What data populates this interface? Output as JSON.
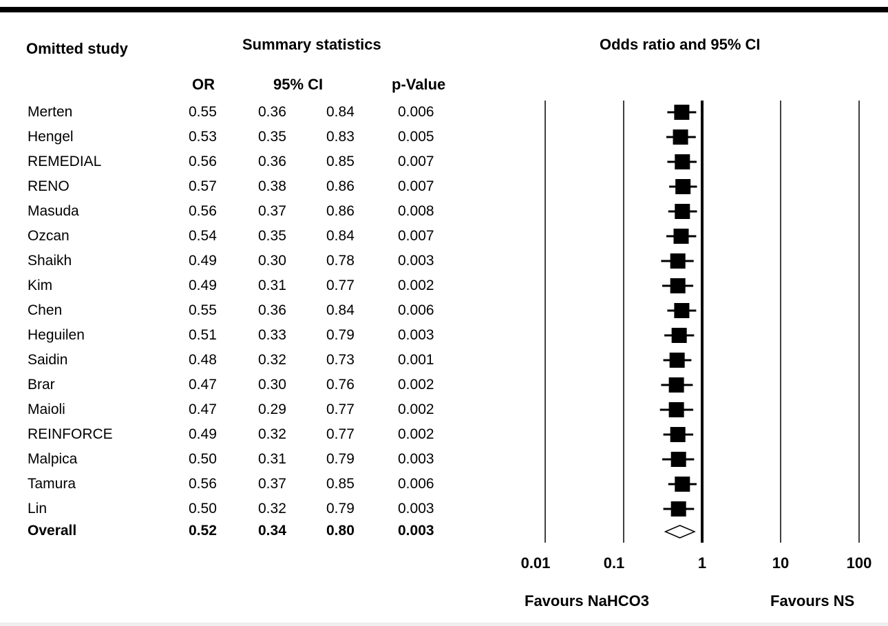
{
  "headers": {
    "omitted_study": "Omitted study",
    "summary_statistics": "Summary statistics",
    "odds_ratio_ci": "Odds ratio and 95% CI",
    "or": "OR",
    "ci_95": "95% CI",
    "p_value": "p-Value"
  },
  "rows": [
    {
      "study": "Merten",
      "or": "0.55",
      "lower": "0.36",
      "upper": "0.84",
      "p": "0.006"
    },
    {
      "study": "Hengel",
      "or": "0.53",
      "lower": "0.35",
      "upper": "0.83",
      "p": "0.005"
    },
    {
      "study": "REMEDIAL",
      "or": "0.56",
      "lower": "0.36",
      "upper": "0.85",
      "p": "0.007"
    },
    {
      "study": "RENO",
      "or": "0.57",
      "lower": "0.38",
      "upper": "0.86",
      "p": "0.007"
    },
    {
      "study": "Masuda",
      "or": "0.56",
      "lower": "0.37",
      "upper": "0.86",
      "p": "0.008"
    },
    {
      "study": "Ozcan",
      "or": "0.54",
      "lower": "0.35",
      "upper": "0.84",
      "p": "0.007"
    },
    {
      "study": "Shaikh",
      "or": "0.49",
      "lower": "0.30",
      "upper": "0.78",
      "p": "0.003"
    },
    {
      "study": "Kim",
      "or": "0.49",
      "lower": "0.31",
      "upper": "0.77",
      "p": "0.002"
    },
    {
      "study": "Chen",
      "or": "0.55",
      "lower": "0.36",
      "upper": "0.84",
      "p": "0.006"
    },
    {
      "study": "Heguilen",
      "or": "0.51",
      "lower": "0.33",
      "upper": "0.79",
      "p": "0.003"
    },
    {
      "study": "Saidin",
      "or": "0.48",
      "lower": "0.32",
      "upper": "0.73",
      "p": "0.001"
    },
    {
      "study": "Brar",
      "or": "0.47",
      "lower": "0.30",
      "upper": "0.76",
      "p": "0.002"
    },
    {
      "study": "Maioli",
      "or": "0.47",
      "lower": "0.29",
      "upper": "0.77",
      "p": "0.002"
    },
    {
      "study": "REINFORCE",
      "or": "0.49",
      "lower": "0.32",
      "upper": "0.77",
      "p": "0.002"
    },
    {
      "study": "Malpica",
      "or": "0.50",
      "lower": "0.31",
      "upper": "0.79",
      "p": "0.003"
    },
    {
      "study": "Tamura",
      "or": "0.56",
      "lower": "0.37",
      "upper": "0.85",
      "p": "0.006"
    },
    {
      "study": "Lin",
      "or": "0.50",
      "lower": "0.32",
      "upper": "0.79",
      "p": "0.003"
    }
  ],
  "overall": {
    "study": "Overall",
    "or": "0.52",
    "lower": "0.34",
    "upper": "0.80",
    "p": "0.003"
  },
  "axis": {
    "ticks": [
      "0.01",
      "0.1",
      "1",
      "10",
      "100"
    ],
    "favours_left": "Favours NaHCO3",
    "favours_right": "Favours NS"
  },
  "chart_data": {
    "type": "forest",
    "scale": "log",
    "xlim": [
      0.01,
      100
    ],
    "xticks": [
      0.01,
      0.1,
      1,
      10,
      100
    ],
    "reference_line": 1,
    "categories": [
      "Merten",
      "Hengel",
      "REMEDIAL",
      "RENO",
      "Masuda",
      "Ozcan",
      "Shaikh",
      "Kim",
      "Chen",
      "Heguilen",
      "Saidin",
      "Brar",
      "Maioli",
      "REINFORCE",
      "Malpica",
      "Tamura",
      "Lin",
      "Overall"
    ],
    "series": [
      {
        "values": [
          0.55,
          0.53,
          0.56,
          0.57,
          0.56,
          0.54,
          0.49,
          0.49,
          0.55,
          0.51,
          0.48,
          0.47,
          0.47,
          0.49,
          0.5,
          0.56,
          0.5,
          0.52
        ]
      },
      {
        "values": [
          0.36,
          0.35,
          0.36,
          0.38,
          0.37,
          0.35,
          0.3,
          0.31,
          0.36,
          0.33,
          0.32,
          0.3,
          0.29,
          0.32,
          0.31,
          0.37,
          0.32,
          0.34
        ]
      },
      {
        "values": [
          0.84,
          0.83,
          0.85,
          0.86,
          0.86,
          0.84,
          0.78,
          0.77,
          0.84,
          0.79,
          0.73,
          0.76,
          0.77,
          0.77,
          0.79,
          0.85,
          0.79,
          0.8
        ]
      }
    ],
    "overall_marker": "diamond",
    "study_marker": "square"
  }
}
